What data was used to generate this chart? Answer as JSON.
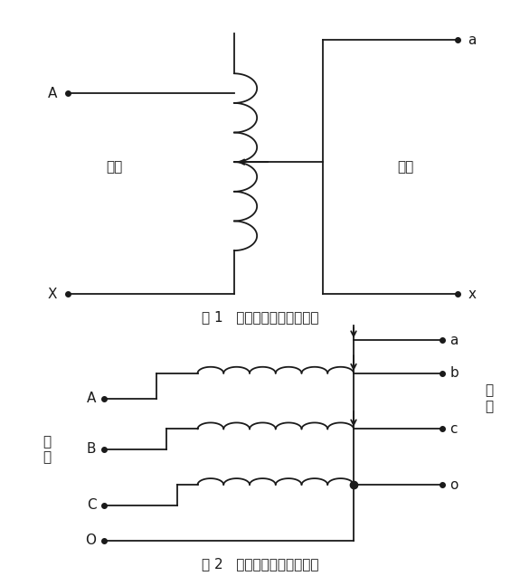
{
  "fig_width": 5.75,
  "fig_height": 6.37,
  "bg_color": "#ffffff",
  "line_color": "#1a1a1a",
  "line_width": 1.3,
  "fig1_caption": "图 1   单相调压器绕组联结图",
  "fig2_caption": "图 2   三相调压器绕组联结图",
  "fig1_label_A": "A",
  "fig1_label_X": "X",
  "fig1_label_a": "a",
  "fig1_label_x": "x",
  "fig1_label_input": "输入",
  "fig1_label_output": "输出",
  "fig2_label_A": "A",
  "fig2_label_B": "B",
  "fig2_label_C": "C",
  "fig2_label_O": "O",
  "fig2_label_a": "a",
  "fig2_label_b": "b",
  "fig2_label_c": "c",
  "fig2_label_o": "o",
  "fig2_label_input": "输\n入",
  "fig2_label_output": "输\n出"
}
